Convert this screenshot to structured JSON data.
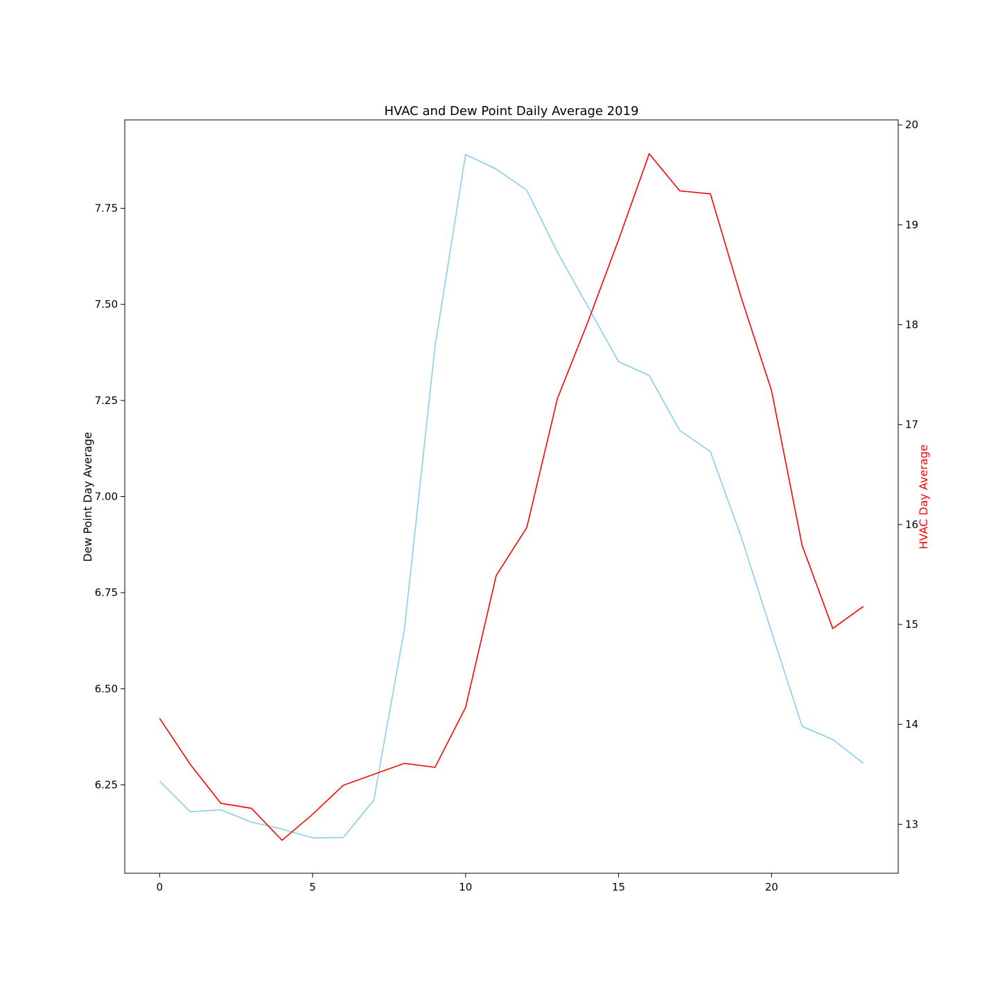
{
  "chart_data": {
    "type": "line",
    "title": "HVAC and Dew Point Daily Average 2019",
    "x": [
      0,
      1,
      2,
      3,
      4,
      5,
      6,
      7,
      8,
      9,
      10,
      11,
      12,
      13,
      14,
      15,
      16,
      17,
      18,
      19,
      20,
      21,
      22,
      23
    ],
    "xlim": [
      -1.14,
      24.14
    ],
    "x_ticks": [
      0,
      5,
      10,
      15,
      20
    ],
    "grid": false,
    "legend": "none",
    "left_axis": {
      "label": "Dew Point Day Average",
      "color": "#000000",
      "ylim": [
        6.02,
        7.98
      ],
      "ticks": [
        "6.25",
        "6.50",
        "6.75",
        "7.00",
        "7.25",
        "7.50",
        "7.75"
      ]
    },
    "right_axis": {
      "label": "HVAC Day Average",
      "color": "#ff0000",
      "ylim": [
        12.51,
        20.05
      ],
      "ticks": [
        "13",
        "14",
        "15",
        "16",
        "17",
        "18",
        "19",
        "20"
      ]
    },
    "series": [
      {
        "axis": "left",
        "color": "#87ceeb",
        "values": [
          6.26,
          6.18,
          6.185,
          6.153,
          6.135,
          6.112,
          6.113,
          6.21,
          6.655,
          7.39,
          7.89,
          7.852,
          7.797,
          7.636,
          7.494,
          7.351,
          7.315,
          7.172,
          7.117,
          6.897,
          6.648,
          6.402,
          6.368,
          6.306
        ]
      },
      {
        "axis": "right",
        "color": "#ff0000",
        "values": [
          14.06,
          13.6,
          13.21,
          13.16,
          12.84,
          13.1,
          13.39,
          13.5,
          13.61,
          13.57,
          14.17,
          15.49,
          15.97,
          17.26,
          18.03,
          18.85,
          19.71,
          19.34,
          19.31,
          18.28,
          17.34,
          15.79,
          14.96,
          15.18
        ]
      }
    ]
  }
}
